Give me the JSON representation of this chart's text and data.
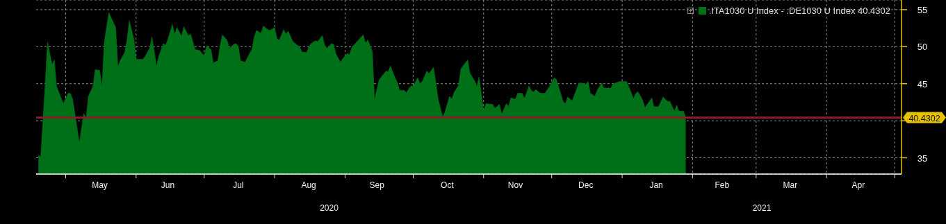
{
  "chart_data": {
    "type": "area",
    "x": [
      "2020-04-19",
      "2020-04-20",
      "2020-04-22",
      "2020-04-23",
      "2020-04-25",
      "2020-04-26",
      "2020-04-27",
      "2020-04-30",
      "2020-05-02",
      "2020-05-03",
      "2020-05-04",
      "2020-05-06",
      "2020-05-07",
      "2020-05-09",
      "2020-05-10",
      "2020-05-11",
      "2020-05-13",
      "2020-05-14",
      "2020-05-16",
      "2020-05-17",
      "2020-05-18",
      "2020-05-20",
      "2020-05-23",
      "2020-05-24",
      "2020-05-25",
      "2020-05-27",
      "2020-05-28",
      "2020-05-29",
      "2020-05-31",
      "2020-06-01",
      "2020-06-04",
      "2020-06-05",
      "2020-06-07",
      "2020-06-08",
      "2020-06-10",
      "2020-06-11",
      "2020-06-13",
      "2020-06-14",
      "2020-06-15",
      "2020-06-17",
      "2020-06-18",
      "2020-06-19",
      "2020-06-21",
      "2020-06-22",
      "2020-06-24",
      "2020-06-25",
      "2020-06-27",
      "2020-06-29",
      "2020-07-01",
      "2020-07-02",
      "2020-07-04",
      "2020-07-05",
      "2020-07-07",
      "2020-07-08",
      "2020-07-09",
      "2020-07-11",
      "2020-07-12",
      "2020-07-14",
      "2020-07-15",
      "2020-07-16",
      "2020-07-17",
      "2020-07-19",
      "2020-07-21",
      "2020-07-22",
      "2020-07-23",
      "2020-07-24",
      "2020-07-26",
      "2020-07-27",
      "2020-07-29",
      "2020-07-30",
      "2020-08-01",
      "2020-08-02",
      "2020-08-03",
      "2020-08-05",
      "2020-08-06",
      "2020-08-07",
      "2020-08-09",
      "2020-08-11",
      "2020-08-12",
      "2020-08-13",
      "2020-08-15",
      "2020-08-16",
      "2020-08-17",
      "2020-08-19",
      "2020-08-20",
      "2020-08-22",
      "2020-08-23",
      "2020-08-24",
      "2020-08-26",
      "2020-08-27",
      "2020-08-28",
      "2020-08-30",
      "2020-08-31",
      "2020-09-02",
      "2020-09-03",
      "2020-09-04",
      "2020-09-06",
      "2020-09-09",
      "2020-09-10",
      "2020-09-11",
      "2020-09-13",
      "2020-09-14",
      "2020-09-16",
      "2020-09-19",
      "2020-09-20",
      "2020-09-21",
      "2020-09-23",
      "2020-09-24",
      "2020-09-25",
      "2020-09-27",
      "2020-09-28",
      "2020-09-30",
      "2020-10-01",
      "2020-10-03",
      "2020-10-04",
      "2020-10-05",
      "2020-10-07",
      "2020-10-08",
      "2020-10-10",
      "2020-10-12",
      "2020-10-14",
      "2020-10-15",
      "2020-10-17",
      "2020-10-18",
      "2020-10-19",
      "2020-10-21",
      "2020-10-22",
      "2020-10-25",
      "2020-10-26",
      "2020-10-28",
      "2020-10-29",
      "2020-10-30",
      "2020-11-01",
      "2020-11-02",
      "2020-11-05",
      "2020-11-06",
      "2020-11-08",
      "2020-11-09",
      "2020-11-11",
      "2020-11-12",
      "2020-11-13",
      "2020-11-15",
      "2020-11-16",
      "2020-11-18",
      "2020-11-19",
      "2020-11-21",
      "2020-11-22",
      "2020-11-23",
      "2020-11-24",
      "2020-11-26",
      "2020-11-28",
      "2020-11-30",
      "2020-12-02",
      "2020-12-03",
      "2020-12-06",
      "2020-12-07",
      "2020-12-08",
      "2020-12-10",
      "2020-12-12",
      "2020-12-13",
      "2020-12-14",
      "2020-12-16",
      "2020-12-17",
      "2020-12-18",
      "2020-12-20",
      "2020-12-21",
      "2020-12-23",
      "2020-12-24",
      "2020-12-27",
      "2020-12-28",
      "2020-12-29",
      "2020-12-31",
      "2021-01-03",
      "2021-01-06",
      "2021-01-07",
      "2021-01-08",
      "2021-01-10",
      "2021-01-11",
      "2021-01-13",
      "2021-01-14",
      "2021-01-15",
      "2021-01-17",
      "2021-01-19",
      "2021-01-21",
      "2021-01-22",
      "2021-01-24",
      "2021-01-25",
      "2021-01-26",
      "2021-01-28",
      "2021-01-29"
    ],
    "series": [
      {
        "name": ".ITA1030 U Index - .DE1030 U Index 40.4302",
        "color": "#007018",
        "values": [
          35.4,
          35.1,
          45.1,
          50.6,
          47.6,
          48.2,
          44.6,
          42.3,
          43.7,
          43.7,
          43.0,
          39.1,
          37.0,
          41.0,
          40.3,
          43.3,
          44.6,
          46.9,
          46.8,
          44.6,
          50.6,
          54.6,
          52.6,
          47.3,
          48.1,
          49.2,
          50.9,
          53.5,
          51.1,
          48.3,
          48.3,
          48.7,
          49.8,
          51.3,
          47.4,
          48.7,
          50.4,
          50.2,
          51.0,
          53.0,
          51.7,
          52.6,
          51.4,
          52.7,
          51.5,
          51.7,
          49.6,
          49.5,
          48.7,
          50.1,
          49.6,
          47.8,
          48.1,
          50.1,
          51.6,
          50.9,
          49.8,
          50.3,
          50.4,
          50.1,
          48.1,
          47.9,
          49.1,
          49.6,
          51.3,
          52.2,
          51.8,
          52.8,
          52.3,
          52.2,
          52.6,
          51.1,
          50.9,
          52.3,
          51.7,
          52.1,
          50.7,
          50.2,
          50.0,
          49.3,
          49.2,
          49.9,
          50.4,
          50.8,
          50.7,
          51.5,
          50.2,
          49.8,
          50.4,
          50.3,
          49.0,
          47.9,
          48.4,
          49.1,
          48.9,
          49.9,
          50.6,
          51.6,
          50.5,
          50.9,
          49.4,
          42.9,
          45.5,
          46.7,
          46.6,
          47.4,
          45.8,
          45.2,
          44.1,
          44.1,
          43.8,
          44.7,
          44.7,
          45.8,
          45.0,
          45.3,
          46.7,
          46.4,
          47.2,
          42.9,
          40.5,
          41.2,
          43.3,
          42.9,
          43.8,
          44.8,
          47.0,
          48.2,
          46.4,
          45.4,
          44.6,
          45.9,
          41.3,
          42.3,
          42.2,
          41.7,
          42.2,
          40.9,
          42.3,
          41.9,
          43.1,
          42.9,
          43.7,
          43.7,
          43.0,
          44.7,
          44.1,
          43.9,
          44.2,
          43.7,
          43.7,
          44.6,
          45.8,
          45.6,
          42.6,
          42.3,
          43.2,
          42.7,
          44.3,
          45.1,
          45.1,
          44.9,
          45.3,
          43.7,
          43.3,
          44.1,
          45.1,
          44.4,
          44.4,
          45.0,
          45.1,
          45.3,
          45.3,
          43.0,
          43.7,
          43.9,
          42.8,
          41.8,
          42.6,
          43.1,
          41.9,
          41.9,
          43.2,
          42.6,
          42.6,
          41.3,
          42.1,
          41.3,
          41.3,
          40.4
        ]
      }
    ],
    "xlim": [
      "2020-04-18",
      "2021-05-04"
    ],
    "xticks": [
      {
        "value": "2020-05-01",
        "label": null
      },
      {
        "value": "2020-05-16",
        "label": "May"
      },
      {
        "value": "2020-06-01",
        "label": null
      },
      {
        "value": "2020-06-15",
        "label": "Jun"
      },
      {
        "value": "2020-07-01",
        "label": null
      },
      {
        "value": "2020-07-16",
        "label": "Jul"
      },
      {
        "value": "2020-08-01",
        "label": null
      },
      {
        "value": "2020-08-16",
        "label": "Aug"
      },
      {
        "value": "2020-09-01",
        "label": null
      },
      {
        "value": "2020-09-15",
        "label": "Sep"
      },
      {
        "value": "2020-10-01",
        "label": null
      },
      {
        "value": "2020-10-16",
        "label": "Oct"
      },
      {
        "value": "2020-11-01",
        "label": null
      },
      {
        "value": "2020-11-15",
        "label": "Nov"
      },
      {
        "value": "2020-12-01",
        "label": null
      },
      {
        "value": "2020-12-16",
        "label": "Dec"
      },
      {
        "value": "2021-01-01",
        "label": null
      },
      {
        "value": "2021-01-16",
        "label": "Jan"
      },
      {
        "value": "2021-02-01",
        "label": null
      },
      {
        "value": "2021-02-14",
        "label": "Feb"
      },
      {
        "value": "2021-03-01",
        "label": null
      },
      {
        "value": "2021-03-16",
        "label": "Mar"
      },
      {
        "value": "2021-04-01",
        "label": null
      },
      {
        "value": "2021-04-15",
        "label": "Apr"
      },
      {
        "value": "2021-05-01",
        "label": null
      }
    ],
    "ylim": [
      32.8,
      56.3
    ],
    "yticks": [
      35,
      {
        "value": 40,
        "label": null
      },
      45,
      50,
      55
    ],
    "ref_lines": [
      {
        "axis": "y",
        "value": 40.4302,
        "label": "40.4302",
        "color": "#8b1a2a"
      }
    ],
    "annotations": [
      "2020",
      "2021"
    ],
    "grid": true,
    "legend": "top right"
  }
}
